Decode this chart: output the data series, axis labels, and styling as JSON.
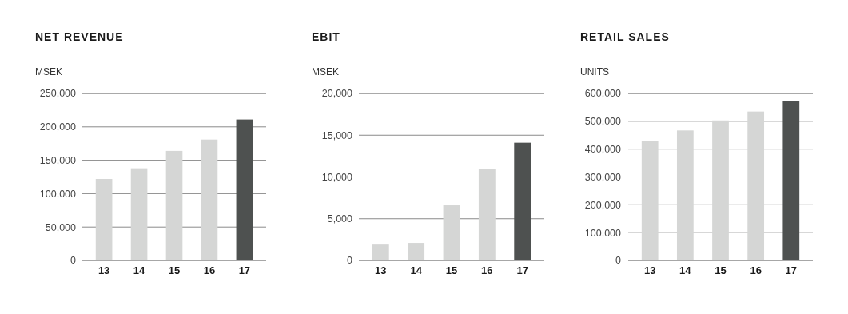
{
  "chart_data": [
    {
      "type": "bar",
      "title": "NET REVENUE",
      "ylabel": "MSEK",
      "categories": [
        "13",
        "14",
        "15",
        "16",
        "17"
      ],
      "values": [
        122000,
        138000,
        164000,
        181000,
        211000
      ],
      "colors": [
        "#d5d6d5",
        "#d5d6d5",
        "#d5d6d5",
        "#d5d6d5",
        "#4e5150"
      ],
      "ylim": [
        0,
        250000
      ],
      "yticks": [
        {
          "value": 0,
          "label": "0"
        },
        {
          "value": 50000,
          "label": "50,000"
        },
        {
          "value": 100000,
          "label": "100,000"
        },
        {
          "value": 150000,
          "label": "150,000"
        },
        {
          "value": 200000,
          "label": "200,000"
        },
        {
          "value": 250000,
          "label": "250,000"
        }
      ],
      "grid": "y"
    },
    {
      "type": "bar",
      "title": "EBIT",
      "ylabel": "MSEK",
      "categories": [
        "13",
        "14",
        "15",
        "16",
        "17"
      ],
      "values": [
        1900,
        2100,
        6600,
        11000,
        14100
      ],
      "colors": [
        "#d5d6d5",
        "#d5d6d5",
        "#d5d6d5",
        "#d5d6d5",
        "#4e5150"
      ],
      "ylim": [
        0,
        20000
      ],
      "yticks": [
        {
          "value": 0,
          "label": "0"
        },
        {
          "value": 5000,
          "label": "5,000"
        },
        {
          "value": 10000,
          "label": "10,000"
        },
        {
          "value": 15000,
          "label": "15,000"
        },
        {
          "value": 20000,
          "label": "20,000"
        }
      ],
      "grid": "y"
    },
    {
      "type": "bar",
      "title": "RETAIL SALES",
      "ylabel": "UNITS",
      "categories": [
        "13",
        "14",
        "15",
        "16",
        "17"
      ],
      "values": [
        428000,
        467000,
        503000,
        535000,
        573000
      ],
      "colors": [
        "#d5d6d5",
        "#d5d6d5",
        "#d5d6d5",
        "#d5d6d5",
        "#4e5150"
      ],
      "ylim": [
        0,
        600000
      ],
      "yticks": [
        {
          "value": 0,
          "label": "0"
        },
        {
          "value": 100000,
          "label": "100,000"
        },
        {
          "value": 200000,
          "label": "200,000"
        },
        {
          "value": 300000,
          "label": "300,000"
        },
        {
          "value": 400000,
          "label": "400,000"
        },
        {
          "value": 500000,
          "label": "500,000"
        },
        {
          "value": 600000,
          "label": "600,000"
        }
      ],
      "grid": "y"
    }
  ]
}
